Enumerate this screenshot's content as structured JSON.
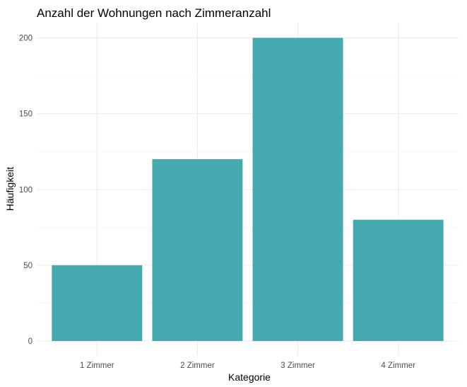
{
  "chart_data": {
    "type": "bar",
    "title": "Anzahl der Wohnungen nach Zimmeranzahl",
    "xlabel": "Kategorie",
    "ylabel": "Häufigkeit",
    "categories": [
      "1 Zimmer",
      "2 Zimmer",
      "3 Zimmer",
      "4 Zimmer"
    ],
    "values": [
      50,
      120,
      200,
      80
    ],
    "ylim": [
      0,
      210
    ],
    "yticks": [
      0,
      50,
      100,
      150,
      200
    ],
    "bar_color": "#45AAB0",
    "grid": true,
    "legend": "none"
  }
}
